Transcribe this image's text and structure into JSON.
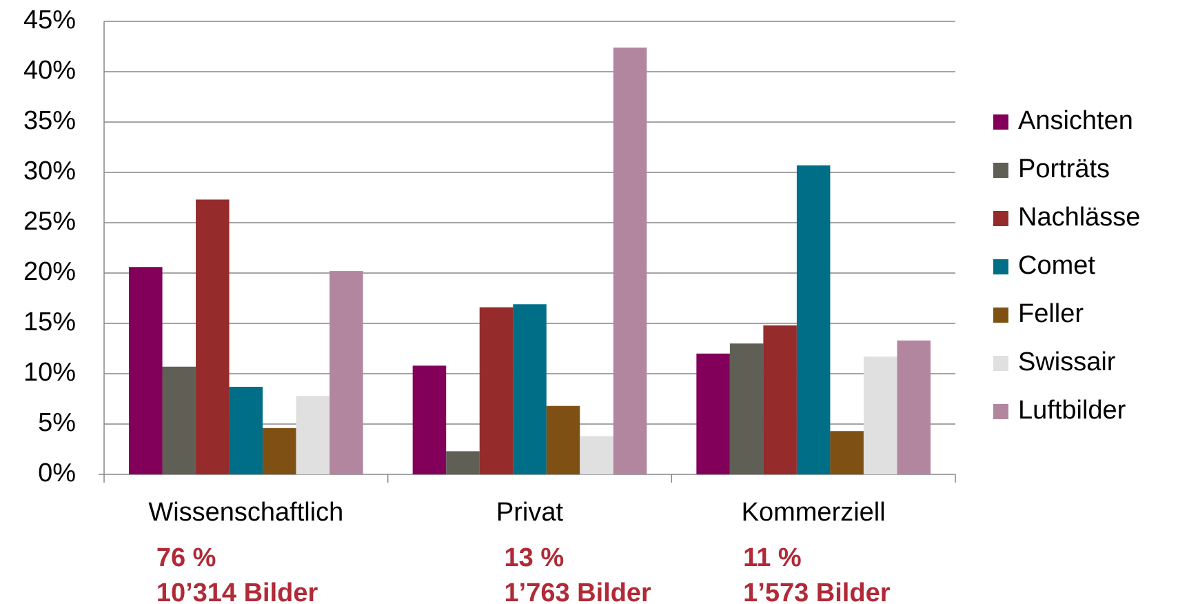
{
  "chart_data": {
    "type": "bar",
    "categories": [
      "Wissenschaftlich",
      "Privat",
      "Kommerziell"
    ],
    "category_notes": [
      [
        "76 %",
        "10’314 Bilder"
      ],
      [
        "13 %",
        "1’763 Bilder"
      ],
      [
        "11 %",
        "1’573 Bilder"
      ]
    ],
    "series": [
      {
        "name": "Ansichten",
        "color": "#82005a",
        "values": [
          20.6,
          10.8,
          12.0
        ]
      },
      {
        "name": "Porträts",
        "color": "#5f5f55",
        "values": [
          10.7,
          2.3,
          13.0
        ]
      },
      {
        "name": "Nachlässe",
        "color": "#952b2b",
        "values": [
          27.3,
          16.6,
          14.8
        ]
      },
      {
        "name": "Comet",
        "color": "#006e87",
        "values": [
          8.7,
          16.9,
          30.7
        ]
      },
      {
        "name": "Feller",
        "color": "#7f5014",
        "values": [
          4.6,
          6.8,
          4.3
        ]
      },
      {
        "name": "Swissair",
        "color": "#e0e0e0",
        "values": [
          7.8,
          3.8,
          11.7
        ]
      },
      {
        "name": "Luftbilder",
        "color": "#b3869f",
        "values": [
          20.2,
          42.4,
          13.3
        ]
      }
    ],
    "ylim": [
      0,
      45
    ],
    "yticks": [
      {
        "value": 0,
        "label": "0%"
      },
      {
        "value": 5,
        "label": "5%"
      },
      {
        "value": 10,
        "label": "10%"
      },
      {
        "value": 15,
        "label": "15%"
      },
      {
        "value": 20,
        "label": "20%"
      },
      {
        "value": 25,
        "label": "25%"
      },
      {
        "value": 30,
        "label": "30%"
      },
      {
        "value": 35,
        "label": "35%"
      },
      {
        "value": 40,
        "label": "40%"
      },
      {
        "value": 45,
        "label": "45%"
      }
    ],
    "grid": true,
    "legend": "right"
  }
}
